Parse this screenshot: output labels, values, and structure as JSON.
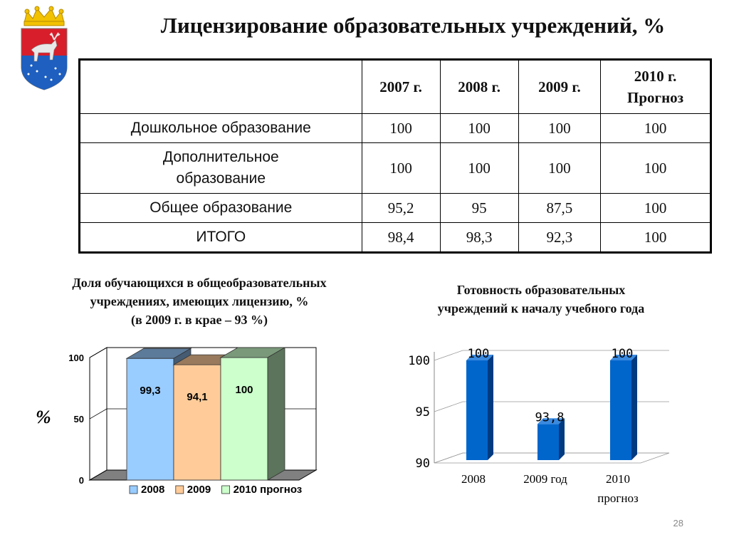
{
  "header": {
    "title": "Лицензирование образовательных учреждений, %"
  },
  "table": {
    "columns": [
      "",
      "2007 г.",
      "2008 г.",
      "2009 г.",
      "2010 г. Прогноз"
    ],
    "rows": [
      {
        "label": "Дошкольное образование",
        "values": [
          "100",
          "100",
          "100",
          "100"
        ]
      },
      {
        "label": "Дополнительное образование",
        "values": [
          "100",
          "100",
          "100",
          "100"
        ]
      },
      {
        "label": "Общее образование",
        "values": [
          "95,2",
          "95",
          "87,5",
          "100"
        ]
      },
      {
        "label": "ИТОГО",
        "values": [
          "98,4",
          "98,3",
          "92,3",
          "100"
        ]
      }
    ]
  },
  "left_caption": {
    "line1": "Доля обучающихся в общеобразовательных",
    "line2": "учреждениях, имеющих лицензию, %",
    "line3": "(в 2009 г. в крае – 93 %)"
  },
  "right_caption": {
    "line1": "Готовность образовательных",
    "line2": "учреждений к началу учебного года"
  },
  "page_number": "28",
  "chart_data": [
    {
      "type": "bar",
      "ylabel": "%",
      "ylim": [
        0,
        100
      ],
      "yticks": [
        "0",
        "50",
        "100"
      ],
      "grid": true,
      "legend": "bottom",
      "series": [
        {
          "name": "2008",
          "values": [
            99.3
          ],
          "label": "99,3",
          "color": "#99ccff"
        },
        {
          "name": "2009",
          "values": [
            94.1
          ],
          "label": "94,1",
          "color": "#ffcc99"
        },
        {
          "name": "2010 прогноз",
          "values": [
            100
          ],
          "label": "100",
          "color": "#ccffcc"
        }
      ]
    },
    {
      "type": "bar",
      "categories": [
        "2008",
        "2009 год",
        "2010 прогноз"
      ],
      "values": [
        100,
        93.8,
        100
      ],
      "labels": [
        "100",
        "93,8",
        "100"
      ],
      "ylim": [
        90,
        100
      ],
      "yticks": [
        "90",
        "95",
        "100"
      ],
      "grid": true,
      "color": "#0066cc"
    }
  ]
}
